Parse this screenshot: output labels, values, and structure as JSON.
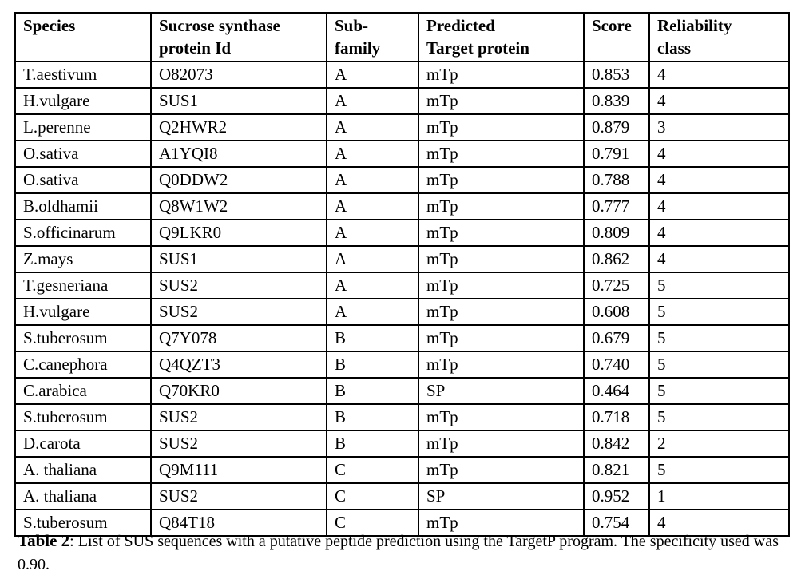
{
  "table": {
    "header": [
      {
        "line1": "Species",
        "line2": ""
      },
      {
        "line1": "Sucrose synthase",
        "line2": "protein Id"
      },
      {
        "line1": "Sub-",
        "line2": "family"
      },
      {
        "line1": "Predicted",
        "line2": "Target protein"
      },
      {
        "line1": "Score",
        "line2": ""
      },
      {
        "line1": "Reliability",
        "line2": "class"
      }
    ],
    "rows": [
      {
        "species": "T.aestivum",
        "protein_id": "O82073",
        "subfamily": "A",
        "target": "mTp",
        "score": "0.853",
        "reliability": "4"
      },
      {
        "species": "H.vulgare",
        "protein_id": "SUS1",
        "subfamily": "A",
        "target": "mTp",
        "score": "0.839",
        "reliability": "4"
      },
      {
        "species": "L.perenne",
        "protein_id": "Q2HWR2",
        "subfamily": "A",
        "target": "mTp",
        "score": "0.879",
        "reliability": "3"
      },
      {
        "species": "O.sativa",
        "protein_id": "A1YQI8",
        "subfamily": "A",
        "target": "mTp",
        "score": "0.791",
        "reliability": "4"
      },
      {
        "species": "O.sativa",
        "protein_id": "Q0DDW2",
        "subfamily": "A",
        "target": "mTp",
        "score": "0.788",
        "reliability": "4"
      },
      {
        "species": "B.oldhamii",
        "protein_id": "Q8W1W2",
        "subfamily": "A",
        "target": "mTp",
        "score": "0.777",
        "reliability": "4"
      },
      {
        "species": "S.officinarum",
        "protein_id": "Q9LKR0",
        "subfamily": "A",
        "target": "mTp",
        "score": "0.809",
        "reliability": "4"
      },
      {
        "species": "Z.mays",
        "protein_id": "SUS1",
        "subfamily": "A",
        "target": "mTp",
        "score": "0.862",
        "reliability": "4"
      },
      {
        "species": "T.gesneriana",
        "protein_id": "SUS2",
        "subfamily": "A",
        "target": "mTp",
        "score": "0.725",
        "reliability": "5"
      },
      {
        "species": "H.vulgare",
        "protein_id": "SUS2",
        "subfamily": "A",
        "target": "mTp",
        "score": "0.608",
        "reliability": "5"
      },
      {
        "species": "S.tuberosum",
        "protein_id": "Q7Y078",
        "subfamily": "B",
        "target": "mTp",
        "score": "0.679",
        "reliability": "5"
      },
      {
        "species": "C.canephora",
        "protein_id": "Q4QZT3",
        "subfamily": "B",
        "target": "mTp",
        "score": "0.740",
        "reliability": "5"
      },
      {
        "species": "C.arabica",
        "protein_id": "Q70KR0",
        "subfamily": "B",
        "target": "SP",
        "score": "0.464",
        "reliability": "5"
      },
      {
        "species": "S.tuberosum",
        "protein_id": "SUS2",
        "subfamily": "B",
        "target": "mTp",
        "score": "0.718",
        "reliability": "5"
      },
      {
        "species": "D.carota",
        "protein_id": "SUS2",
        "subfamily": "B",
        "target": "mTp",
        "score": "0.842",
        "reliability": "2"
      },
      {
        "species": "A. thaliana",
        "protein_id": "Q9M111",
        "subfamily": "C",
        "target": "mTp",
        "score": "0.821",
        "reliability": "5"
      },
      {
        "species": "A. thaliana",
        "protein_id": "SUS2",
        "subfamily": "C",
        "target": "SP",
        "score": "0.952",
        "reliability": "1"
      },
      {
        "species": "S.tuberosum",
        "protein_id": "Q84T18",
        "subfamily": "C",
        "target": "mTp",
        "score": "0.754",
        "reliability": "4"
      }
    ]
  },
  "caption": {
    "label": "Table 2",
    "text": ": List of SUS sequences with a putative peptide prediction using the TargetP program. The specificity used was 0.90."
  },
  "colors": {
    "text": "#000000",
    "border": "#000000",
    "background": "#ffffff"
  }
}
